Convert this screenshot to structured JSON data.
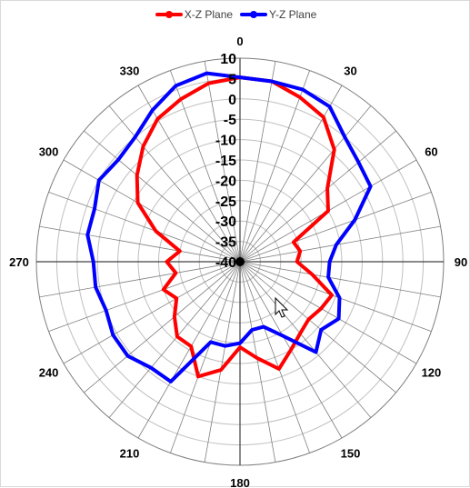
{
  "chart_data": {
    "type": "polar-line",
    "title": "",
    "angle_ticks": [
      0,
      30,
      60,
      90,
      120,
      150,
      180,
      210,
      240,
      270,
      300,
      330
    ],
    "angle_tick_labels": [
      "0",
      "30",
      "60",
      "90",
      "120",
      "150",
      "180",
      "210",
      "240",
      "270",
      "300",
      "330"
    ],
    "radial_ticks": [
      10,
      5,
      0,
      -5,
      -10,
      -15,
      -20,
      -25,
      -30,
      -35,
      -40
    ],
    "radial_tick_labels": [
      "10",
      "5",
      "0",
      "-5",
      "-10",
      "-15",
      "-20",
      "-25",
      "-30",
      "-35",
      "-40"
    ],
    "rlim": [
      -40,
      10
    ],
    "angle_step_deg": 10,
    "legend": {
      "position": "top"
    },
    "series": [
      {
        "name": "X-Z Plane",
        "color": "#ff0000",
        "theta": [
          0,
          10,
          20,
          30,
          40,
          50,
          60,
          70,
          80,
          90,
          100,
          110,
          120,
          130,
          140,
          150,
          160,
          170,
          180,
          190,
          200,
          210,
          220,
          230,
          240,
          250,
          260,
          270,
          280,
          290,
          300,
          310,
          320,
          330,
          340,
          350
        ],
        "r": [
          5.3,
          5.0,
          3.0,
          1.0,
          -4.0,
          -12.0,
          -15.0,
          -26.0,
          -25.0,
          -26.0,
          -22.0,
          -16.0,
          -17.0,
          -18.0,
          -17.0,
          -15.0,
          -12.0,
          -16.0,
          -19.0,
          -13.0,
          -10.0,
          -16.0,
          -16.0,
          -19.0,
          -22.0,
          -20.0,
          -24.0,
          -22.0,
          -25.0,
          -18.0,
          -11.0,
          -7.0,
          -3.0,
          0.5,
          2.5,
          4.5
        ]
      },
      {
        "name": "Y-Z Plane",
        "color": "#0000ff",
        "theta": [
          0,
          10,
          20,
          30,
          40,
          50,
          60,
          70,
          80,
          90,
          100,
          110,
          120,
          130,
          140,
          150,
          160,
          170,
          180,
          190,
          200,
          210,
          220,
          230,
          240,
          250,
          260,
          270,
          280,
          290,
          300,
          310,
          320,
          330,
          340,
          350
        ],
        "r": [
          5.3,
          5.0,
          5.0,
          4.0,
          0.0,
          -2.0,
          -3.0,
          -10.0,
          -16.0,
          -18.0,
          -18.0,
          -14.0,
          -12.0,
          -14.0,
          -11.0,
          -19.0,
          -23.0,
          -23.0,
          -20.0,
          -19.0,
          -19.0,
          -6.0,
          -6.0,
          -4.0,
          -4.0,
          -5.0,
          -4.0,
          -4.0,
          -2.0,
          -2.0,
          0.0,
          -1.0,
          0.0,
          3.0,
          6.0,
          7.0
        ]
      }
    ]
  }
}
